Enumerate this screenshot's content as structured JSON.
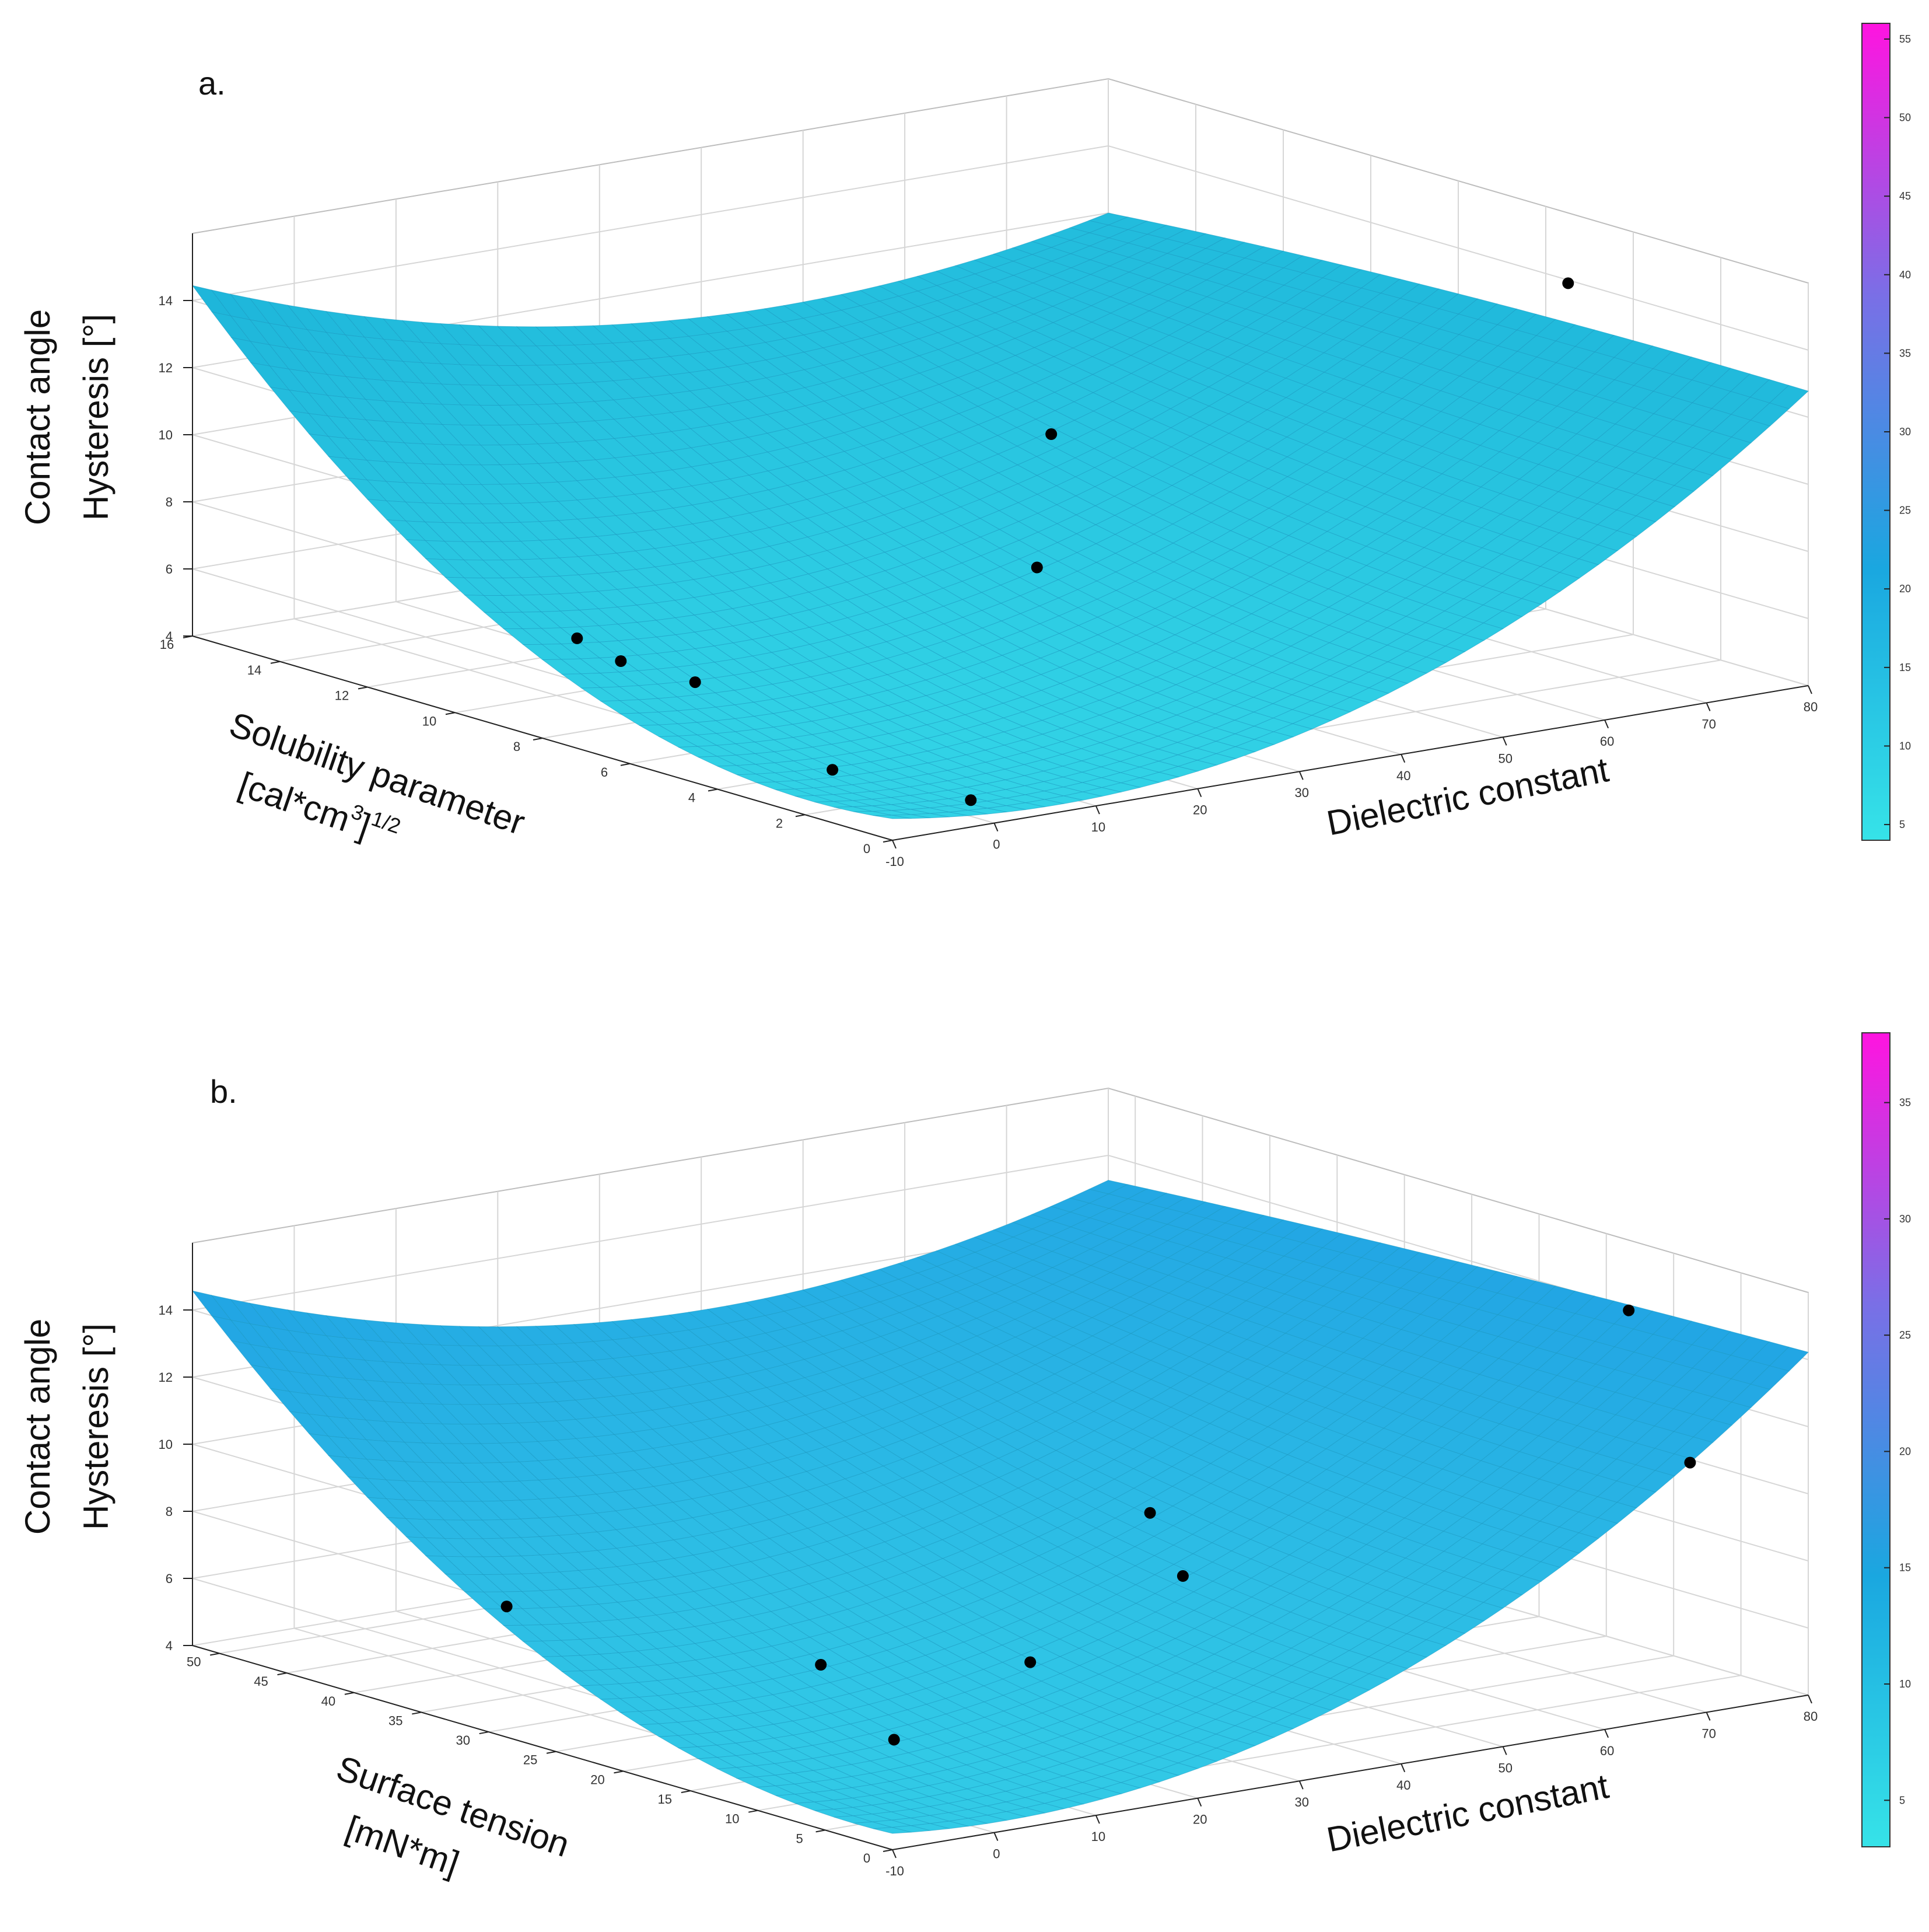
{
  "figure": {
    "panels": [
      "a.",
      "b."
    ]
  },
  "chart_data": [
    {
      "type": "surface3d",
      "panel_label": "a.",
      "zlabel_lines": [
        "Contact angle",
        "Hysteresis [°]"
      ],
      "ylabel_lines": [
        "Solubility parameter",
        "[cal*cm",
        "3",
        "]",
        "1/2"
      ],
      "xlabel": "Dielectric constant",
      "x_ticks": [
        "-10",
        "0",
        "10",
        "20",
        "30",
        "40",
        "50",
        "60",
        "70",
        "80"
      ],
      "y_ticks": [
        "0",
        "2",
        "4",
        "6",
        "8",
        "10",
        "12",
        "14",
        "16"
      ],
      "z_ticks": [
        "4",
        "6",
        "8",
        "10",
        "12",
        "14"
      ],
      "xlim": [
        -10,
        80
      ],
      "ylim": [
        0,
        16
      ],
      "zlim": [
        4,
        16
      ],
      "colorbar_ticks": [
        "5",
        "10",
        "15",
        "20",
        "25",
        "30",
        "35",
        "40",
        "45",
        "50",
        "55"
      ],
      "colorbar_range": [
        4,
        56
      ],
      "colorbar_colors": [
        "#36e3e8",
        "#1aa7e0",
        "#7a6fe6",
        "#ff14e0"
      ],
      "surface_color": "#32d3e6",
      "surface_color_far": "#1ab0d8",
      "data_points": [
        {
          "x": 2,
          "y": 1,
          "z": 4.2
        },
        {
          "x": -3,
          "y": 3,
          "z": 4.6
        },
        {
          "x": 5,
          "y": 8,
          "z": 4.9
        },
        {
          "x": 2,
          "y": 9,
          "z": 5.3
        },
        {
          "x": 2,
          "y": 10,
          "z": 5.6
        },
        {
          "x": 30,
          "y": 6,
          "z": 7.8
        },
        {
          "x": 40,
          "y": 8,
          "z": 10.5
        },
        {
          "x": 65,
          "y": 2,
          "z": 16
        }
      ]
    },
    {
      "type": "surface3d",
      "panel_label": "b.",
      "zlabel_lines": [
        "Contact angle",
        "Hysteresis [°]"
      ],
      "ylabel_lines": [
        "Surface tension",
        "[mN*m]"
      ],
      "xlabel": "Dielectric constant",
      "x_ticks": [
        "-10",
        "0",
        "10",
        "20",
        "30",
        "40",
        "50",
        "60",
        "70",
        "80"
      ],
      "y_ticks": [
        "0",
        "5",
        "10",
        "15",
        "20",
        "25",
        "30",
        "35",
        "40",
        "45",
        "50"
      ],
      "z_ticks": [
        "4",
        "6",
        "8",
        "10",
        "12",
        "14"
      ],
      "xlim": [
        -10,
        80
      ],
      "ylim": [
        0,
        52
      ],
      "zlim": [
        4,
        16
      ],
      "colorbar_ticks": [
        "5",
        "10",
        "15",
        "20",
        "25",
        "30",
        "35"
      ],
      "colorbar_range": [
        3,
        38
      ],
      "colorbar_colors": [
        "#36e3e8",
        "#1aa7e0",
        "#7a6fe6",
        "#ff14e0"
      ],
      "surface_color": "#32cbe6",
      "surface_color_far": "#1f9ee3",
      "data_points": [
        {
          "x": 10,
          "y": 15,
          "z": 4.5
        },
        {
          "x": 20,
          "y": 28,
          "z": 4.7
        },
        {
          "x": 5,
          "y": 40,
          "z": 5.8
        },
        {
          "x": 30,
          "y": 20,
          "z": 5.2
        },
        {
          "x": 45,
          "y": 20,
          "z": 7.0
        },
        {
          "x": 55,
          "y": 30,
          "z": 7.2
        },
        {
          "x": 75,
          "y": 5,
          "z": 10.6
        },
        {
          "x": 65,
          "y": 2,
          "z": 16
        }
      ]
    }
  ]
}
